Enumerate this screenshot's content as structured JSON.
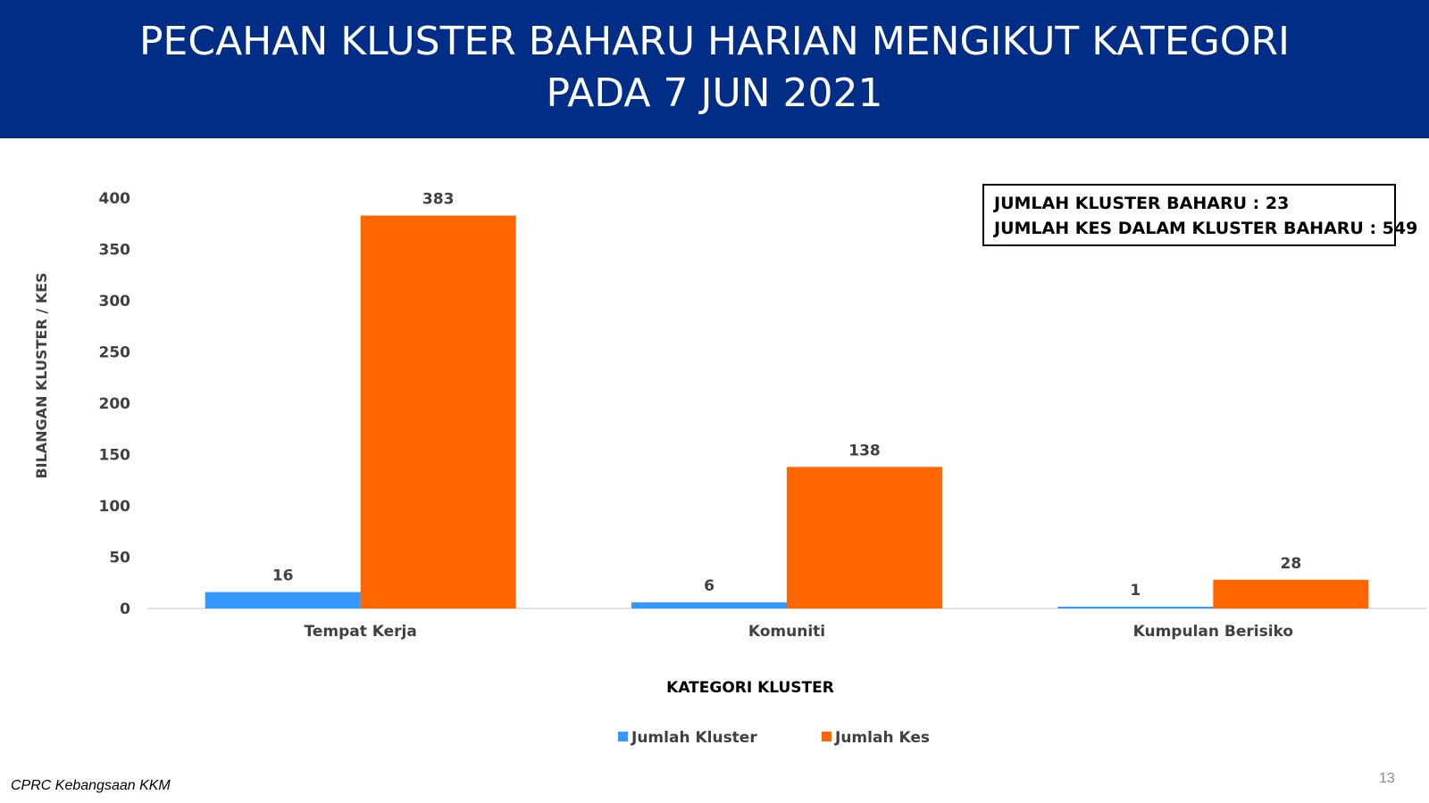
{
  "header": {
    "title_line1": "PECAHAN KLUSTER BAHARU HARIAN MENGIKUT KATEGORI",
    "title_line2": "PADA 7 JUN 2021"
  },
  "summary": {
    "line1": "JUMLAH KLUSTER BAHARU : 23",
    "line2": "JUMLAH KES DALAM KLUSTER BAHARU : 549"
  },
  "footer": {
    "source": "CPRC Kebangsaan KKM",
    "page_number": "13"
  },
  "colors": {
    "header_bg": "#002D86",
    "series_kluster": "#3399FF",
    "series_kes": "#FF6600"
  },
  "chart_data": {
    "type": "bar",
    "title": "PECAHAN KLUSTER BAHARU HARIAN MENGIKUT KATEGORI PADA 7 JUN 2021",
    "xlabel": "KATEGORI KLUSTER",
    "ylabel": "BILANGAN KLUSTER / KES",
    "categories": [
      "Tempat Kerja",
      "Komuniti",
      "Kumpulan Berisiko"
    ],
    "series": [
      {
        "name": "Jumlah Kluster",
        "values": [
          16,
          6,
          1
        ],
        "color": "#3399FF"
      },
      {
        "name": "Jumlah Kes",
        "values": [
          383,
          138,
          28
        ],
        "color": "#FF6600"
      }
    ],
    "ylim": [
      0,
      400
    ],
    "yticks": [
      0,
      50,
      100,
      150,
      200,
      250,
      300,
      350,
      400
    ],
    "grid": false,
    "legend_position": "bottom",
    "data_labels": true
  }
}
